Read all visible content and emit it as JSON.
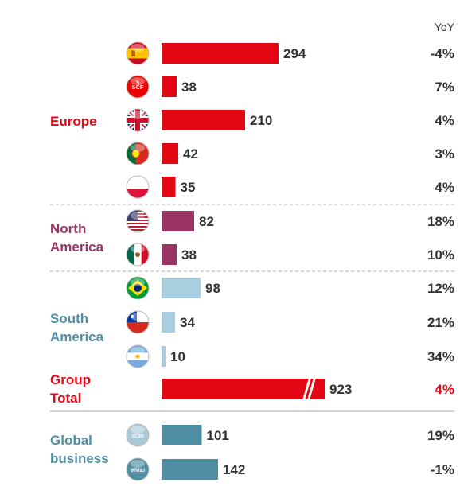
{
  "chart_data": {
    "type": "bar",
    "yoy_header": "YoY",
    "groups": [
      {
        "name": "Europe",
        "color": "#e30613",
        "rows": [
          {
            "icon": "spain-flag-icon",
            "value": 294,
            "yoy": "-4%"
          },
          {
            "icon": "scf-icon",
            "icon_text": "SCF",
            "value": 38,
            "yoy": "7%"
          },
          {
            "icon": "uk-flag-icon",
            "value": 210,
            "yoy": "4%"
          },
          {
            "icon": "portugal-flag-icon",
            "value": 42,
            "yoy": "3%"
          },
          {
            "icon": "poland-flag-icon",
            "value": 35,
            "yoy": "4%"
          }
        ]
      },
      {
        "name": "North America",
        "color": "#9b3465",
        "rows": [
          {
            "icon": "usa-flag-icon",
            "value": 82,
            "yoy": "18%"
          },
          {
            "icon": "mexico-flag-icon",
            "value": 38,
            "yoy": "10%"
          }
        ]
      },
      {
        "name": "South America",
        "color": "#a8cfe0",
        "rows": [
          {
            "icon": "brazil-flag-icon",
            "value": 98,
            "yoy": "12%"
          },
          {
            "icon": "chile-flag-icon",
            "value": 34,
            "yoy": "21%"
          },
          {
            "icon": "argentina-flag-icon",
            "value": 10,
            "yoy": "34%"
          }
        ]
      },
      {
        "name": "Group Total",
        "color": "#e30613",
        "broken_axis": true,
        "rows": [
          {
            "icon": "",
            "value": 923,
            "yoy": "4%",
            "yoy_color": "#e30613"
          }
        ]
      },
      {
        "name": "Global business",
        "color": "#4f8ea3",
        "rows": [
          {
            "icon": "scib-icon",
            "icon_text": "SCIB",
            "value": 101,
            "yoy": "19%"
          },
          {
            "icon": "wmi-icon",
            "icon_text": "WM&I",
            "value": 142,
            "yoy": "-1%"
          }
        ]
      }
    ]
  }
}
